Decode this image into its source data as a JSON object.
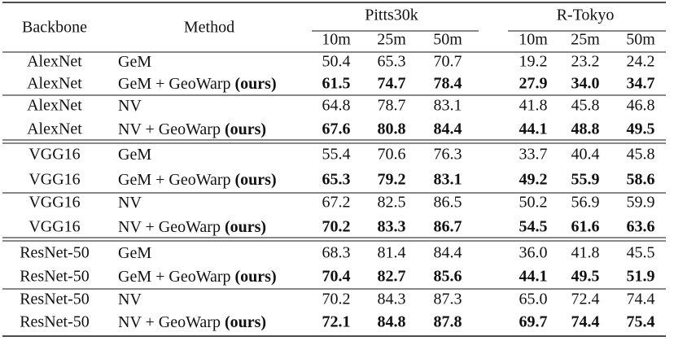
{
  "table": {
    "header": {
      "backbone": "Backbone",
      "method": "Method",
      "groups": [
        {
          "name": "Pitts30k",
          "columns": [
            "10m",
            "25m",
            "50m"
          ]
        },
        {
          "name": "R-Tokyo",
          "columns": [
            "10m",
            "25m",
            "50m"
          ]
        }
      ]
    },
    "rows": [
      {
        "backbone": "AlexNet",
        "method": "GeM",
        "values": [
          "50.4",
          "65.3",
          "70.7",
          "19.2",
          "23.2",
          "24.2"
        ]
      },
      {
        "backbone": "AlexNet",
        "method": "GeM + GeoWarp",
        "suffix": "(ours)",
        "values": [
          "61.5",
          "74.7",
          "78.4",
          "27.9",
          "34.0",
          "34.7"
        ]
      },
      {
        "backbone": "AlexNet",
        "method": "NV",
        "values": [
          "64.8",
          "78.7",
          "83.1",
          "41.8",
          "45.8",
          "46.8"
        ]
      },
      {
        "backbone": "AlexNet",
        "method": "NV + GeoWarp",
        "suffix": "(ours)",
        "values": [
          "67.6",
          "80.8",
          "84.4",
          "44.1",
          "48.8",
          "49.5"
        ]
      },
      {
        "backbone": "VGG16",
        "method": "GeM",
        "values": [
          "55.4",
          "70.6",
          "76.3",
          "33.7",
          "40.4",
          "45.8"
        ]
      },
      {
        "backbone": "VGG16",
        "method": "GeM + GeoWarp",
        "suffix": "(ours)",
        "values": [
          "65.3",
          "79.2",
          "83.1",
          "49.2",
          "55.9",
          "58.6"
        ]
      },
      {
        "backbone": "VGG16",
        "method": "NV",
        "values": [
          "67.2",
          "82.5",
          "86.5",
          "50.2",
          "56.9",
          "59.9"
        ]
      },
      {
        "backbone": "VGG16",
        "method": "NV + GeoWarp",
        "suffix": "(ours)",
        "values": [
          "70.2",
          "83.3",
          "86.7",
          "54.5",
          "61.6",
          "63.6"
        ]
      },
      {
        "backbone": "ResNet-50",
        "method": "GeM",
        "values": [
          "68.3",
          "81.4",
          "84.4",
          "36.0",
          "41.8",
          "45.5"
        ]
      },
      {
        "backbone": "ResNet-50",
        "method": "GeM + GeoWarp",
        "suffix": "(ours)",
        "values": [
          "70.4",
          "82.7",
          "85.6",
          "44.1",
          "49.5",
          "51.9"
        ]
      },
      {
        "backbone": "ResNet-50",
        "method": "NV",
        "values": [
          "70.2",
          "84.3",
          "87.3",
          "65.0",
          "72.4",
          "74.4"
        ]
      },
      {
        "backbone": "ResNet-50",
        "method": "NV + GeoWarp",
        "suffix": "(ours)",
        "values": [
          "72.1",
          "84.8",
          "87.8",
          "69.7",
          "74.4",
          "75.4"
        ]
      }
    ]
  }
}
